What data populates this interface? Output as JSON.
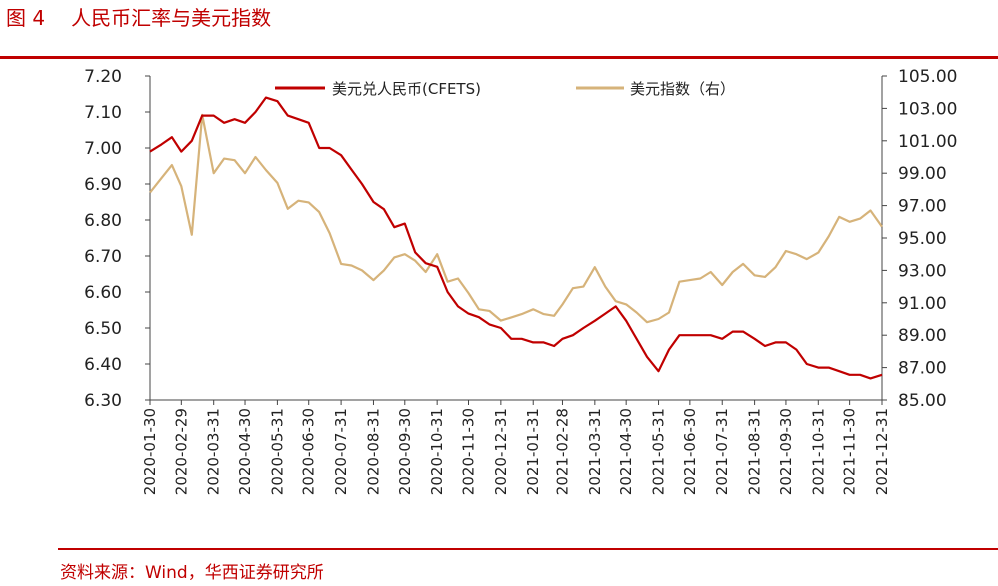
{
  "header": {
    "figure_number": "图 4",
    "title": "人民币汇率与美元指数"
  },
  "footer": {
    "source": "资料来源：Wind，华西证券研究所"
  },
  "colors": {
    "accent": "#c00000",
    "series_cny": "#c00000",
    "series_dxy": "#d6b37a"
  },
  "chart_data": {
    "type": "line",
    "title": "人民币汇率与美元指数",
    "x_tick_labels": [
      "2020-01-30",
      "2020-02-29",
      "2020-03-31",
      "2020-04-30",
      "2020-05-31",
      "2020-06-30",
      "2020-07-31",
      "2020-08-31",
      "2020-09-30",
      "2020-10-31",
      "2020-11-30",
      "2020-12-31",
      "2021-01-31",
      "2021-02-28",
      "2021-03-31",
      "2021-04-30",
      "2021-05-31",
      "2021-06-30",
      "2021-07-31",
      "2021-08-31",
      "2021-09-30",
      "2021-10-31",
      "2021-11-30",
      "2021-12-31"
    ],
    "y_left": {
      "range": [
        6.3,
        7.2
      ],
      "ticks": [
        "7.20",
        "7.10",
        "7.00",
        "6.90",
        "6.80",
        "6.70",
        "6.60",
        "6.50",
        "6.40",
        "6.30"
      ]
    },
    "y_right": {
      "range": [
        85.0,
        105.0
      ],
      "ticks": [
        "105.00",
        "103.00",
        "101.00",
        "99.00",
        "97.00",
        "95.00",
        "93.00",
        "91.00",
        "89.00",
        "87.00",
        "85.00"
      ]
    },
    "legend_position": "top",
    "series": [
      {
        "name": "美元兑人民币(CFETS)",
        "axis": "left",
        "x": [
          "2020-01-30",
          "2020-02-10",
          "2020-02-20",
          "2020-02-29",
          "2020-03-10",
          "2020-03-20",
          "2020-03-31",
          "2020-04-10",
          "2020-04-20",
          "2020-04-30",
          "2020-05-10",
          "2020-05-20",
          "2020-05-31",
          "2020-06-10",
          "2020-06-20",
          "2020-06-30",
          "2020-07-10",
          "2020-07-20",
          "2020-07-31",
          "2020-08-10",
          "2020-08-20",
          "2020-08-31",
          "2020-09-10",
          "2020-09-20",
          "2020-09-30",
          "2020-10-10",
          "2020-10-20",
          "2020-10-31",
          "2020-11-10",
          "2020-11-20",
          "2020-11-30",
          "2020-12-10",
          "2020-12-20",
          "2020-12-31",
          "2021-01-10",
          "2021-01-20",
          "2021-01-31",
          "2021-02-10",
          "2021-02-20",
          "2021-02-28",
          "2021-03-10",
          "2021-03-20",
          "2021-03-31",
          "2021-04-10",
          "2021-04-20",
          "2021-04-30",
          "2021-05-10",
          "2021-05-20",
          "2021-05-31",
          "2021-06-10",
          "2021-06-20",
          "2021-06-30",
          "2021-07-10",
          "2021-07-20",
          "2021-07-31",
          "2021-08-10",
          "2021-08-20",
          "2021-08-31",
          "2021-09-10",
          "2021-09-20",
          "2021-09-30",
          "2021-10-10",
          "2021-10-20",
          "2021-10-31",
          "2021-11-10",
          "2021-11-20",
          "2021-11-30",
          "2021-12-10",
          "2021-12-20",
          "2021-12-31"
        ],
        "values": [
          6.99,
          7.01,
          7.03,
          6.99,
          7.02,
          7.09,
          7.09,
          7.07,
          7.08,
          7.07,
          7.1,
          7.14,
          7.13,
          7.09,
          7.08,
          7.07,
          7.0,
          7.0,
          6.98,
          6.94,
          6.9,
          6.85,
          6.83,
          6.78,
          6.79,
          6.71,
          6.68,
          6.67,
          6.6,
          6.56,
          6.54,
          6.53,
          6.51,
          6.5,
          6.47,
          6.47,
          6.46,
          6.46,
          6.45,
          6.47,
          6.48,
          6.5,
          6.52,
          6.54,
          6.56,
          6.52,
          6.47,
          6.42,
          6.38,
          6.44,
          6.48,
          6.48,
          6.48,
          6.48,
          6.47,
          6.49,
          6.49,
          6.47,
          6.45,
          6.46,
          6.46,
          6.44,
          6.4,
          6.39,
          6.39,
          6.38,
          6.37,
          6.37,
          6.36,
          6.37
        ]
      },
      {
        "name": "美元指数（右）",
        "axis": "right",
        "x": [
          "2020-01-30",
          "2020-02-10",
          "2020-02-20",
          "2020-02-29",
          "2020-03-10",
          "2020-03-20",
          "2020-03-31",
          "2020-04-10",
          "2020-04-20",
          "2020-04-30",
          "2020-05-10",
          "2020-05-20",
          "2020-05-31",
          "2020-06-10",
          "2020-06-20",
          "2020-06-30",
          "2020-07-10",
          "2020-07-20",
          "2020-07-31",
          "2020-08-10",
          "2020-08-20",
          "2020-08-31",
          "2020-09-10",
          "2020-09-20",
          "2020-09-30",
          "2020-10-10",
          "2020-10-20",
          "2020-10-31",
          "2020-11-10",
          "2020-11-20",
          "2020-11-30",
          "2020-12-10",
          "2020-12-20",
          "2020-12-31",
          "2021-01-10",
          "2021-01-20",
          "2021-01-31",
          "2021-02-10",
          "2021-02-20",
          "2021-02-28",
          "2021-03-10",
          "2021-03-20",
          "2021-03-31",
          "2021-04-10",
          "2021-04-20",
          "2021-04-30",
          "2021-05-10",
          "2021-05-20",
          "2021-05-31",
          "2021-06-10",
          "2021-06-20",
          "2021-06-30",
          "2021-07-10",
          "2021-07-20",
          "2021-07-31",
          "2021-08-10",
          "2021-08-20",
          "2021-08-31",
          "2021-09-10",
          "2021-09-20",
          "2021-09-30",
          "2021-10-10",
          "2021-10-20",
          "2021-10-31",
          "2021-11-10",
          "2021-11-20",
          "2021-11-30",
          "2021-12-10",
          "2021-12-20",
          "2021-12-31"
        ],
        "values": [
          97.8,
          98.7,
          99.5,
          98.2,
          95.2,
          102.6,
          99.0,
          99.9,
          99.8,
          99.0,
          100.0,
          99.2,
          98.4,
          96.8,
          97.3,
          97.2,
          96.6,
          95.3,
          93.4,
          93.3,
          93.0,
          92.4,
          93.0,
          93.8,
          94.0,
          93.6,
          92.9,
          94.0,
          92.3,
          92.5,
          91.6,
          90.6,
          90.5,
          89.9,
          90.1,
          90.3,
          90.6,
          90.3,
          90.2,
          90.9,
          91.9,
          92.0,
          93.2,
          92.0,
          91.1,
          90.9,
          90.4,
          89.8,
          90.0,
          90.4,
          92.3,
          92.4,
          92.5,
          92.9,
          92.1,
          92.9,
          93.4,
          92.7,
          92.6,
          93.2,
          94.2,
          94.0,
          93.7,
          94.1,
          95.1,
          96.3,
          96.0,
          96.2,
          96.7,
          95.7
        ]
      }
    ]
  }
}
